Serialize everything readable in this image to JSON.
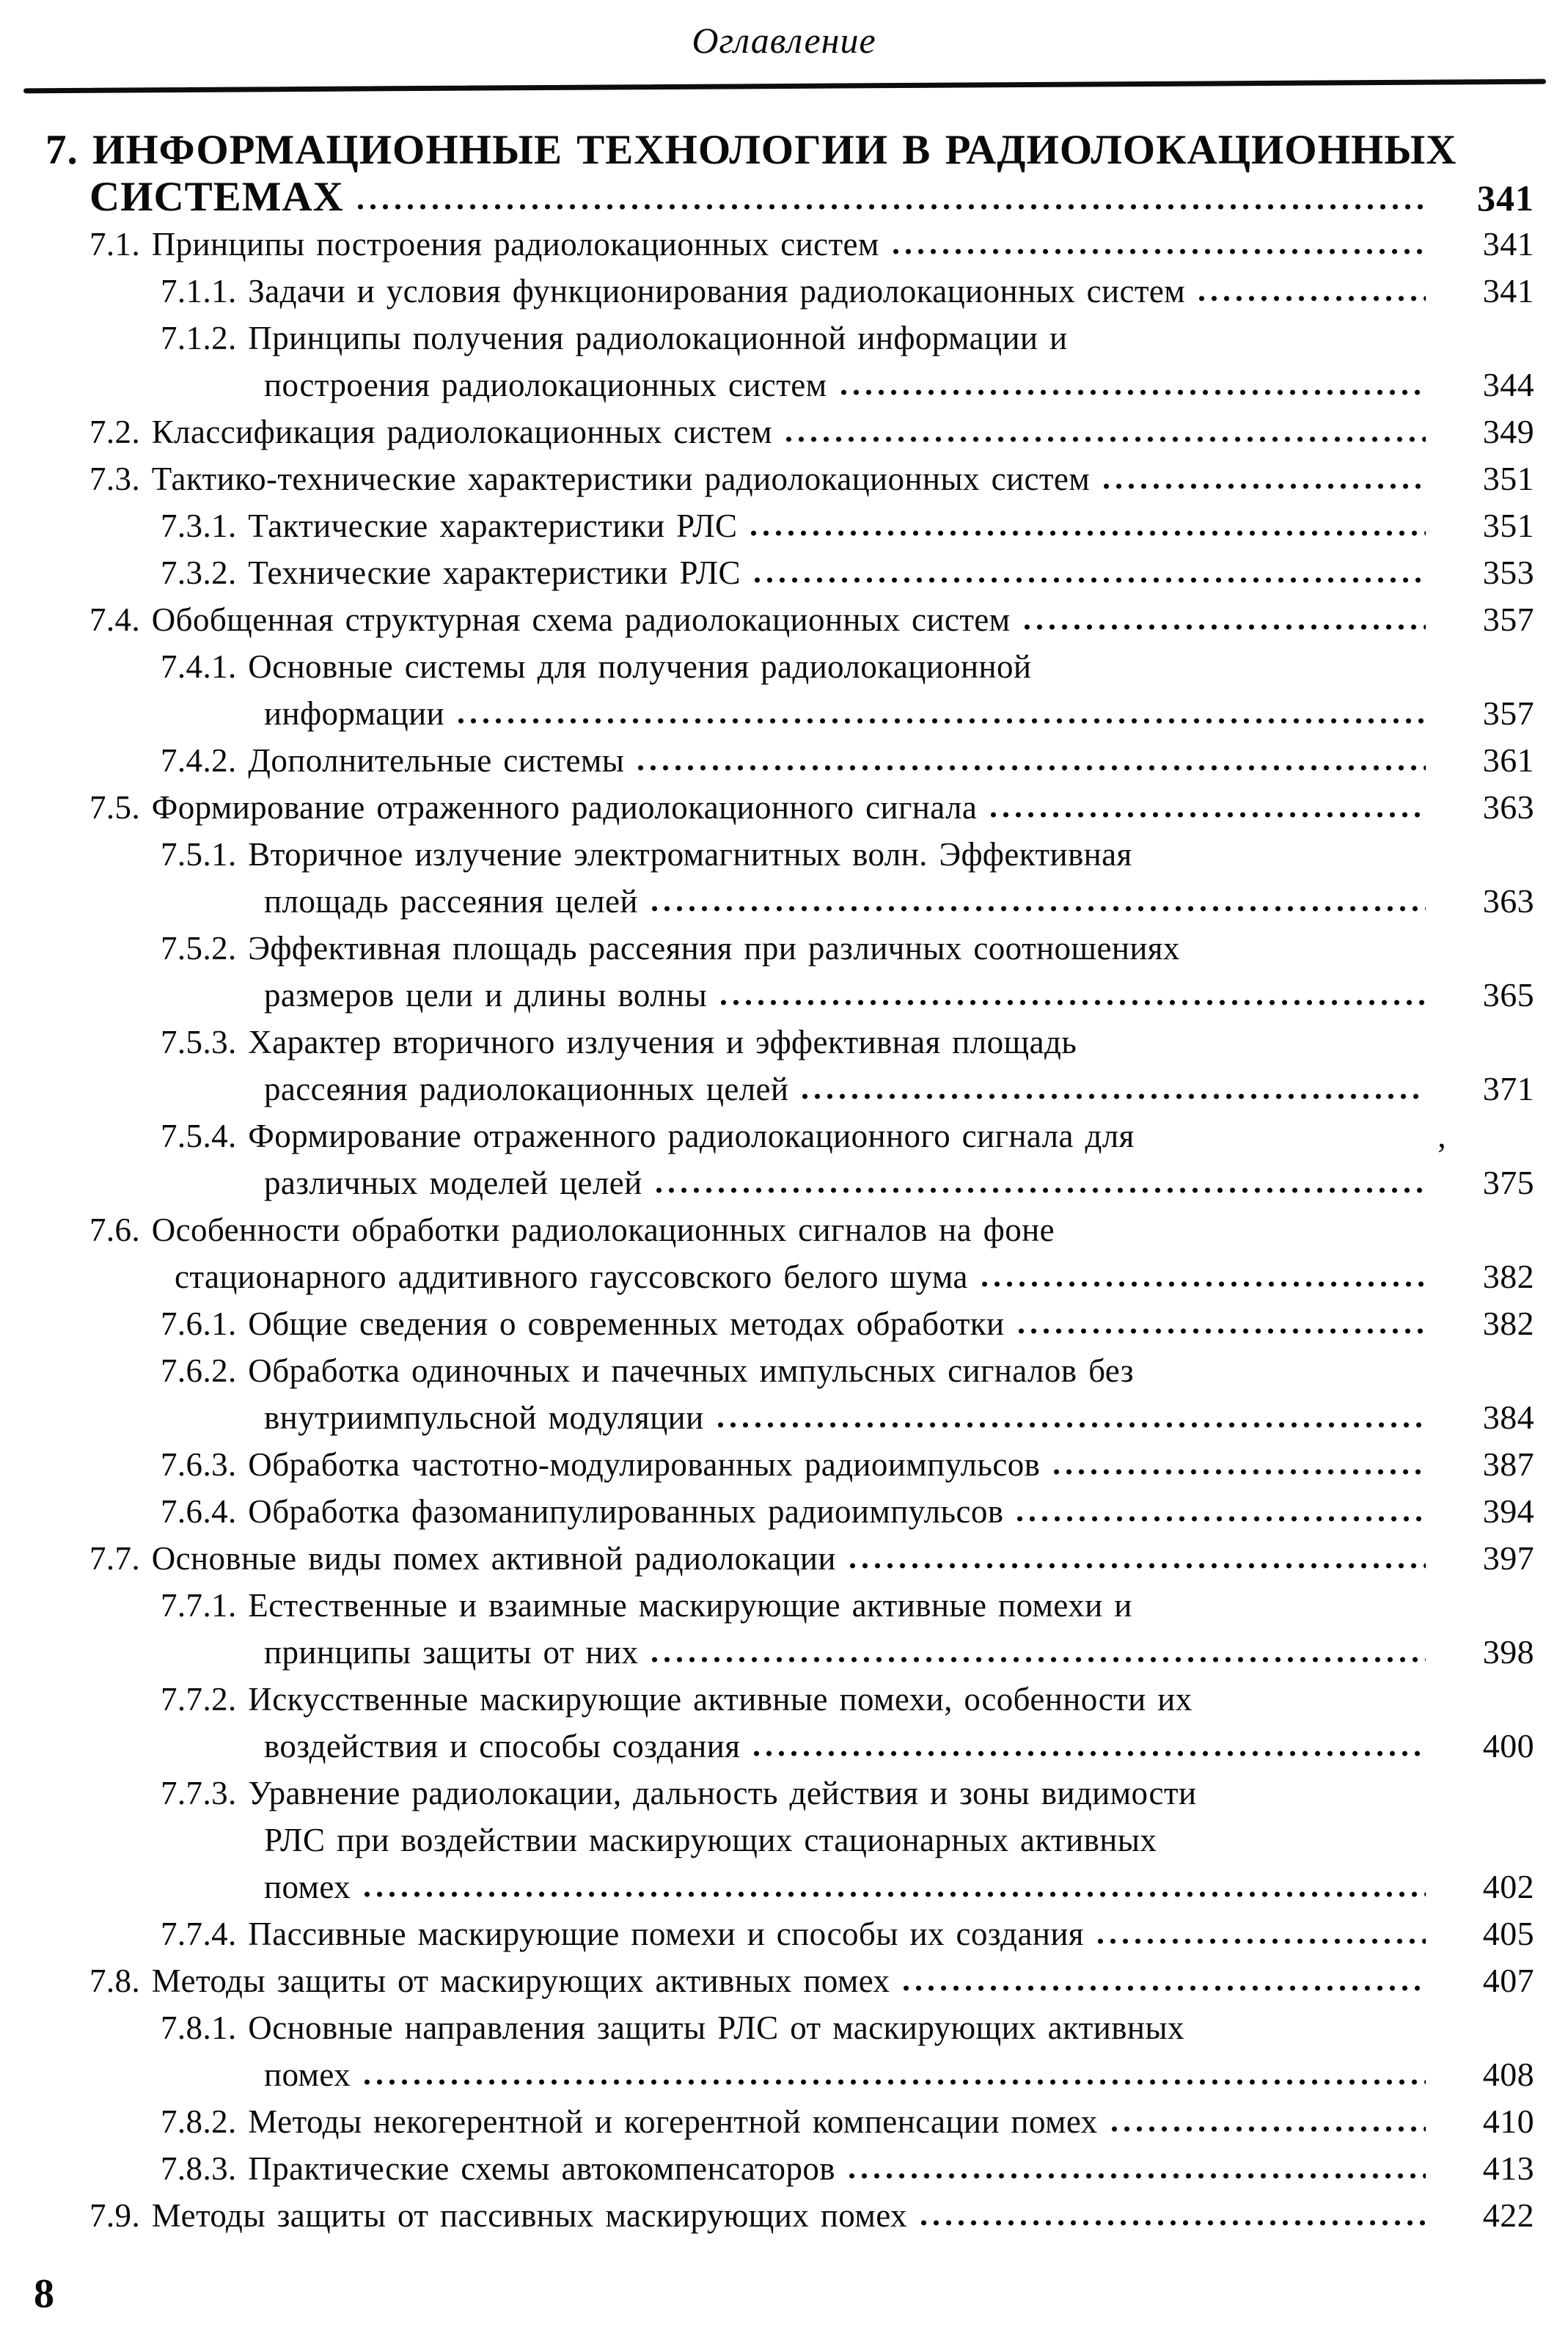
{
  "page": {
    "header": "Оглавление",
    "folio": "8"
  },
  "toc": {
    "lines": [
      {
        "indent": "a",
        "style": "chapter",
        "text": "7. ИНФОРМАЦИОННЫЕ ТЕХНОЛОГИИ  В РАДИОЛОКАЦИОННЫХ"
      },
      {
        "indent": "b",
        "style": "chapter",
        "text": "СИСТЕМАХ",
        "page": "341"
      },
      {
        "indent": "b",
        "text": "7.1. Принципы построения радиолокационных систем",
        "page": "341"
      },
      {
        "indent": "c",
        "text": "7.1.1. Задачи и условия функционирования  радиолокационных систем",
        "page": "341"
      },
      {
        "indent": "c",
        "text": "7.1.2. Принципы получения радиолокационной информации  и"
      },
      {
        "indent": "e",
        "text": "построения радиолокационных систем",
        "page": "344"
      },
      {
        "indent": "b",
        "text": "7.2. Классификация радиолокационных систем",
        "page": "349"
      },
      {
        "indent": "b",
        "text": "7.3. Тактико-технические характеристики  радиолокационных систем",
        "page": "351"
      },
      {
        "indent": "c",
        "text": "7.3.1. Тактические характеристики РЛС",
        "page": "351"
      },
      {
        "indent": "c",
        "text": "7.3.2. Технические характеристики РЛС",
        "page": "353"
      },
      {
        "indent": "b",
        "text": "7.4. Обобщенная структурная схема радиолокационных систем",
        "page": "357"
      },
      {
        "indent": "c",
        "text": "7.4.1. Основные системы для получения  радиолокационной"
      },
      {
        "indent": "e",
        "text": "информации",
        "page": "357"
      },
      {
        "indent": "c",
        "text": "7.4.2. Дополнительные системы",
        "page": "361"
      },
      {
        "indent": "b",
        "text": "7.5. Формирование отраженного радиолокационного сигнала",
        "page": "363"
      },
      {
        "indent": "c",
        "text": "7.5.1. Вторичное излучение электромагнитных волн.  Эффективная"
      },
      {
        "indent": "e",
        "text": "площадь рассеяния целей",
        "page": "363"
      },
      {
        "indent": "c",
        "text": "7.5.2. Эффективная площадь рассеяния  при различных соотношениях"
      },
      {
        "indent": "e",
        "text": "размеров цели и длины волны",
        "page": "365"
      },
      {
        "indent": "c",
        "text": "7.5.3. Характер вторичного излучения  и эффективная площадь"
      },
      {
        "indent": "e",
        "text": "рассеяния радиолокационных целей",
        "page": "371"
      },
      {
        "indent": "c",
        "text": "7.5.4. Формирование отраженного радиолокационного сигнала  для",
        "artifact": ","
      },
      {
        "indent": "e",
        "text": "различных моделей целей",
        "page": "375"
      },
      {
        "indent": "b",
        "text": "7.6. Особенности обработки радиолокационных сигналов  на фоне"
      },
      {
        "indent": "d",
        "text": "стационарного аддитивного гауссовского белого шума",
        "page": "382"
      },
      {
        "indent": "c",
        "text": "7.6.1. Общие сведения о современных методах обработки",
        "page": "382"
      },
      {
        "indent": "c",
        "text": "7.6.2. Обработка одиночных и пачечных импульсных сигналов  без"
      },
      {
        "indent": "e",
        "text": "внутриимпульсной модуляции",
        "page": "384"
      },
      {
        "indent": "c",
        "text": "7.6.3. Обработка частотно-модулированных радиоимпульсов",
        "page": "387"
      },
      {
        "indent": "c",
        "text": "7.6.4. Обработка фазоманипулированных радиоимпульсов",
        "page": "394"
      },
      {
        "indent": "b",
        "text": "7.7. Основные виды помех активной радиолокации",
        "page": "397"
      },
      {
        "indent": "c",
        "text": "7.7.1. Естественные и взаимные маскирующие активные помехи  и"
      },
      {
        "indent": "e",
        "text": "принципы защиты от них",
        "page": "398"
      },
      {
        "indent": "c",
        "text": "7.7.2. Искусственные маскирующие активные помехи,  особенности их"
      },
      {
        "indent": "e",
        "text": "воздействия и способы создания",
        "page": "400"
      },
      {
        "indent": "c",
        "text": "7.7.3. Уравнение радиолокации, дальность действия и зоны видимости"
      },
      {
        "indent": "e",
        "text": "РЛС при воздействии маскирующих стационарных активных"
      },
      {
        "indent": "e",
        "text": "помех",
        "page": "402"
      },
      {
        "indent": "c",
        "text": "7.7.4. Пассивные маскирующие помехи и способы их создания",
        "page": "405"
      },
      {
        "indent": "b",
        "text": "7.8. Методы защиты от маскирующих активных помех",
        "page": "407"
      },
      {
        "indent": "c",
        "text": "7.8.1. Основные направления защиты РЛС  от маскирующих активных"
      },
      {
        "indent": "e",
        "text": "помех",
        "page": "408"
      },
      {
        "indent": "c",
        "text": "7.8.2. Методы некогерентной и когерентной компенсации помех",
        "page": "410"
      },
      {
        "indent": "c",
        "text": "7.8.3. Практические схемы автокомпенсаторов",
        "page": "413"
      },
      {
        "indent": "b",
        "text": "7.9. Методы защиты от пассивных маскирующих помех",
        "page": "422"
      }
    ]
  }
}
